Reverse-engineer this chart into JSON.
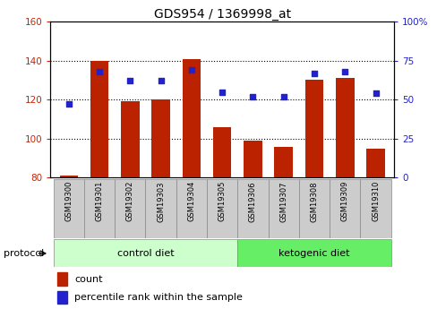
{
  "title": "GDS954 / 1369998_at",
  "samples": [
    "GSM19300",
    "GSM19301",
    "GSM19302",
    "GSM19303",
    "GSM19304",
    "GSM19305",
    "GSM19306",
    "GSM19307",
    "GSM19308",
    "GSM19309",
    "GSM19310"
  ],
  "counts": [
    81,
    140,
    119,
    120,
    141,
    106,
    99,
    96,
    130,
    131,
    95
  ],
  "percentiles": [
    47,
    68,
    62,
    62,
    69,
    55,
    52,
    52,
    67,
    68,
    54
  ],
  "ylim_left": [
    80,
    160
  ],
  "ylim_right": [
    0,
    100
  ],
  "yticks_left": [
    80,
    100,
    120,
    140,
    160
  ],
  "yticks_right": [
    0,
    25,
    50,
    75,
    100
  ],
  "ytick_labels_right": [
    "0",
    "25",
    "50",
    "75",
    "100%"
  ],
  "bar_color": "#bb2200",
  "dot_color": "#2222cc",
  "bar_bottom": 80,
  "ctrl_n": 6,
  "ket_n": 5,
  "control_label": "control diet",
  "ketogenic_label": "ketogenic diet",
  "protocol_label": "protocol",
  "legend_count": "count",
  "legend_percentile": "percentile rank within the sample",
  "bg_color": "#ffffff",
  "plot_bg_color": "#ffffff",
  "sample_bg_color": "#cccccc",
  "control_diet_color": "#ccffcc",
  "ketogenic_diet_color": "#66ee66",
  "left_tick_color": "#cc2200",
  "right_tick_color": "#2222cc",
  "title_fontsize": 10,
  "tick_fontsize": 7.5,
  "label_fontsize": 8,
  "legend_fontsize": 8
}
